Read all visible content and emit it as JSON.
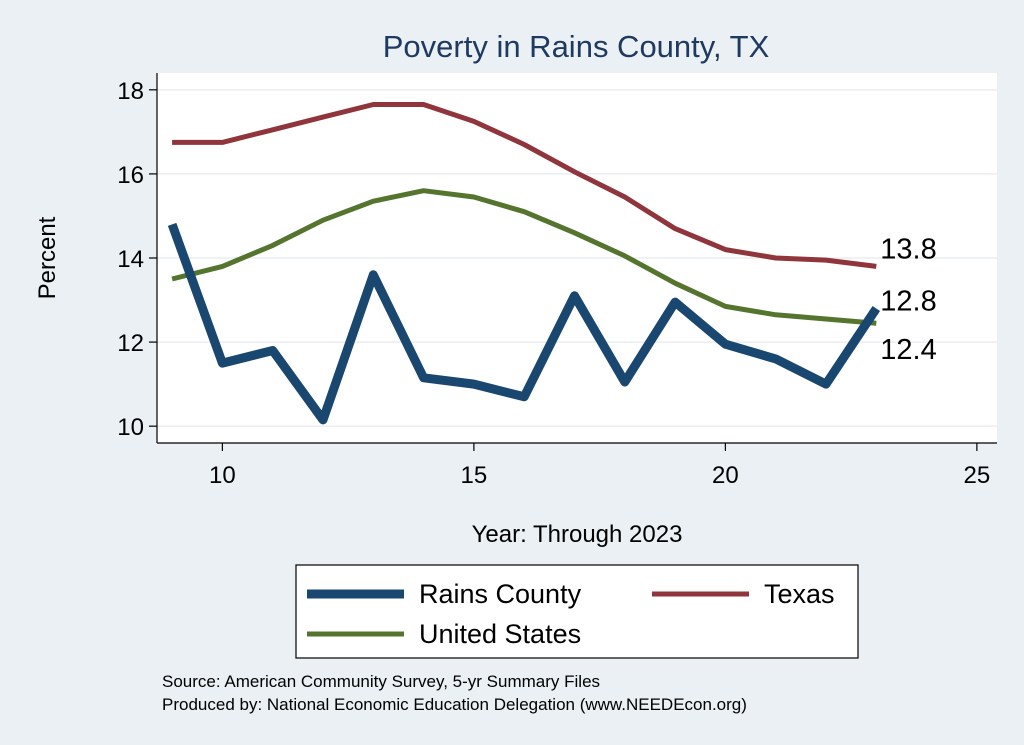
{
  "chart_data": {
    "type": "line",
    "title": "Poverty in Rains County, TX",
    "xlabel": "Year: Through 2023",
    "ylabel": "Percent",
    "xlim": [
      8.7,
      25.4
    ],
    "ylim": [
      9.6,
      18.4
    ],
    "xticks": [
      10,
      15,
      20,
      25
    ],
    "yticks": [
      10,
      12,
      14,
      16,
      18
    ],
    "grid": "horizontal",
    "legend_position": "bottom",
    "x": [
      9,
      10,
      11,
      12,
      13,
      14,
      15,
      16,
      17,
      18,
      19,
      20,
      21,
      22,
      23
    ],
    "series": [
      {
        "name": "Rains County",
        "color": "#1a476f",
        "line_width": "thick",
        "values": [
          14.8,
          11.5,
          11.8,
          10.15,
          13.6,
          11.15,
          11.0,
          10.7,
          13.1,
          11.05,
          12.95,
          11.95,
          11.6,
          11.0,
          12.8
        ]
      },
      {
        "name": "Texas",
        "color": "#90353b",
        "line_width": "medium",
        "values": [
          16.75,
          16.75,
          17.05,
          17.35,
          17.65,
          17.65,
          17.25,
          16.7,
          16.05,
          15.45,
          14.7,
          14.2,
          14.0,
          13.95,
          13.8
        ]
      },
      {
        "name": "United States",
        "color": "#55752f",
        "line_width": "medium",
        "values": [
          13.5,
          13.8,
          14.3,
          14.9,
          15.35,
          15.6,
          15.45,
          15.1,
          14.6,
          14.05,
          13.4,
          12.85,
          12.65,
          12.55,
          12.45
        ]
      }
    ],
    "end_labels": [
      {
        "series": "Texas",
        "text": "13.8"
      },
      {
        "series": "Rains County",
        "text": "12.8"
      },
      {
        "series": "United States",
        "text": "12.4"
      }
    ],
    "notes": [
      "Source: American Community Survey, 5-yr Summary Files",
      "Produced by: National Economic Education Delegation (www.NEEDEcon.org)"
    ]
  }
}
